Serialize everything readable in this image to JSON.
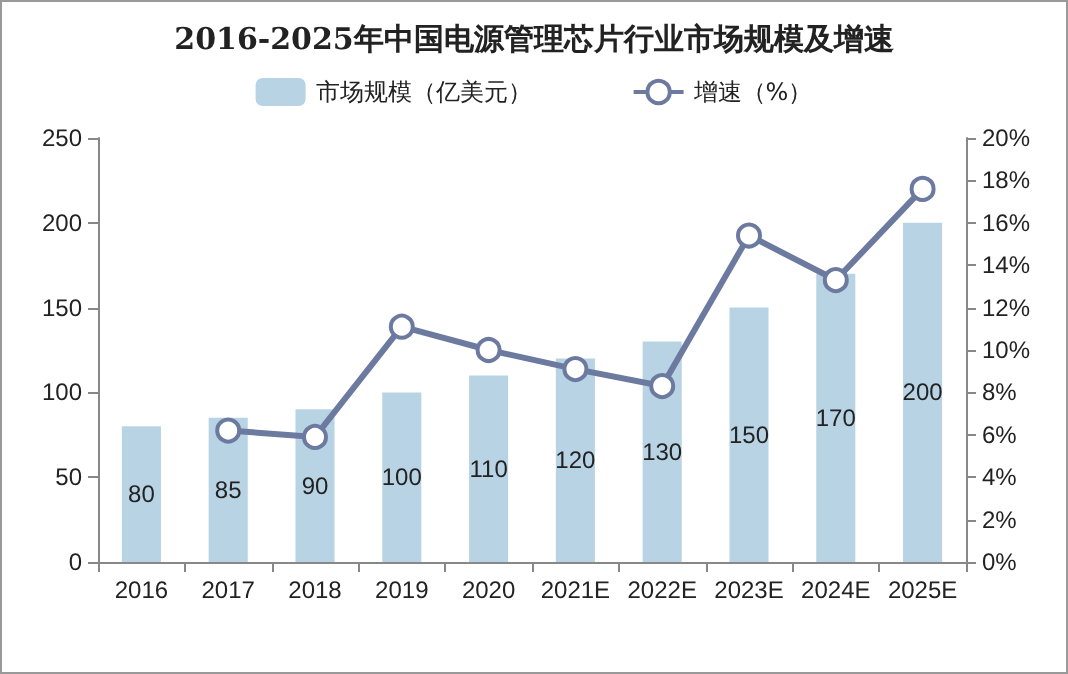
{
  "chart_data": {
    "type": "bar",
    "title": "2016-2025年中国电源管理芯片行业市场规模及增速",
    "categories": [
      "2016",
      "2017",
      "2018",
      "2019",
      "2020",
      "2021E",
      "2022E",
      "2023E",
      "2024E",
      "2025E"
    ],
    "series": [
      {
        "name": "市场规模（亿美元）",
        "color": "#b8d3e4",
        "values": [
          80,
          85,
          90,
          100,
          110,
          120,
          130,
          150,
          170,
          200
        ],
        "value_labels": [
          "80",
          "85",
          "90",
          "100",
          "110",
          "120",
          "130",
          "150",
          "170",
          "200"
        ]
      },
      {
        "name": "增速（%）",
        "type": "line",
        "axis": "y2",
        "color": "#6c7aa0",
        "marker": "circle",
        "values": [
          null,
          6.2,
          5.9,
          11.1,
          10.0,
          9.1,
          8.3,
          15.4,
          13.3,
          17.6
        ]
      }
    ],
    "ylim": [
      0,
      250
    ],
    "yticks": [
      0,
      50,
      100,
      150,
      200,
      250
    ],
    "y2lim": [
      0,
      20
    ],
    "y2ticks": [
      {
        "value": 0,
        "label": "0%"
      },
      {
        "value": 2,
        "label": "2%"
      },
      {
        "value": 4,
        "label": "4%"
      },
      {
        "value": 6,
        "label": "6%"
      },
      {
        "value": 8,
        "label": "8%"
      },
      {
        "value": 10,
        "label": "10%"
      },
      {
        "value": 12,
        "label": "12%"
      },
      {
        "value": 14,
        "label": "14%"
      },
      {
        "value": 16,
        "label": "16%"
      },
      {
        "value": 18,
        "label": "18%"
      },
      {
        "value": 20,
        "label": "20%"
      }
    ],
    "grid": false,
    "legend": "top"
  }
}
